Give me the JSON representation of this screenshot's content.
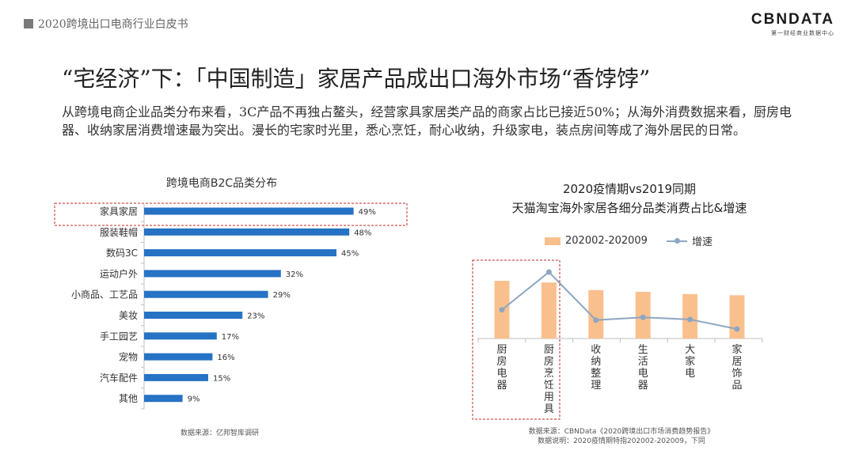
{
  "header": {
    "doc_title": "2020跨境出口电商行业白皮书",
    "logo_main": "CBNDATA",
    "logo_sub": "第一财经商业数据中心"
  },
  "page": {
    "title": "“宅经济”下：「中国制造」家居产品成出口海外市场“香饽饽”",
    "paragraph": "从跨境电商企业品类分布来看，3C产品不再独占鳌头，经营家具家居类产品的商家占比已接近50%；从海外消费数据来看，厨房电器、收纳家居消费增速最为突出。漫长的宅家时光里，悉心烹饪，耐心收纳，升级家电，装点房间等成了海外居民的日常。"
  },
  "colors": {
    "bar_blue": "#2672c4",
    "bar_orange": "#f9c08e",
    "line_gray_blue": "#8ea6c0",
    "highlight_red": "#c62828"
  },
  "chart_data": [
    {
      "type": "bar",
      "orientation": "horizontal",
      "title": "跨境电商B2C品类分布",
      "categories": [
        "家具家居",
        "服装鞋帽",
        "数码3C",
        "运动户外",
        "小商品、工艺品",
        "美妆",
        "手工园艺",
        "宠物",
        "汽车配件",
        "其他"
      ],
      "values": [
        49,
        48,
        45,
        32,
        29,
        23,
        17,
        16,
        15,
        9
      ],
      "value_labels": [
        "49%",
        "48%",
        "45%",
        "32%",
        "29%",
        "23%",
        "17%",
        "16%",
        "15%",
        "9%"
      ],
      "highlighted_category": "家具家居",
      "source": "数据来源：亿邦智库调研"
    },
    {
      "type": "bar",
      "title": "2020疫情期vs2019同期",
      "subtitle": "天猫淘宝海外家居各细分品类消费占比&增速",
      "categories": [
        "厨房电器",
        "厨房烹饪用具",
        "收纳整理",
        "生活电器",
        "大家电",
        "家居饰品"
      ],
      "series": [
        {
          "name": "202002-202009",
          "kind": "bar",
          "values": [
            1.0,
            0.97,
            0.84,
            0.81,
            0.77,
            0.75
          ]
        },
        {
          "name": "增速",
          "kind": "line",
          "values": [
            0.45,
            1.0,
            0.3,
            0.34,
            0.31,
            0.17
          ]
        }
      ],
      "value_scale": "relative, unlabeled axis",
      "highlighted_categories": [
        "厨房电器",
        "厨房烹饪用具"
      ],
      "source_lines": [
        "数据来源：CBNData《2020跨境出口市场消费趋势报告》",
        "数据说明：2020疫情期特指202002-202009，下同"
      ]
    }
  ]
}
